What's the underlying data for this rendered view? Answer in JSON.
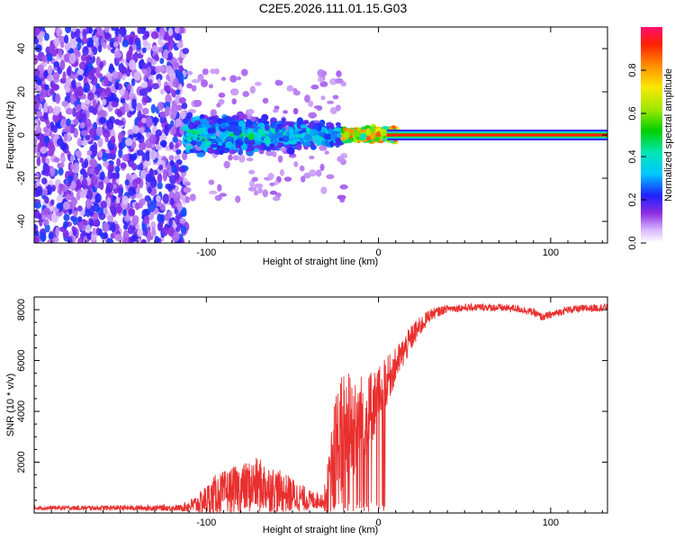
{
  "title": "C2E5.2026.111.01.15.G03",
  "chart_data": [
    {
      "type": "heatmap",
      "xlabel": "Height of straight line (km)",
      "ylabel": "Frequency (Hz)",
      "xlim": [
        -200,
        133
      ],
      "ylim": [
        -50,
        50
      ],
      "xticks": [
        -100,
        0,
        100
      ],
      "xtick_labels": [
        "-100",
        "0",
        "100"
      ],
      "yticks": [
        -40,
        -20,
        0,
        20,
        40
      ],
      "ytick_labels": [
        "-40",
        "-20",
        "0",
        "20",
        "40"
      ],
      "colorbar": {
        "label": "Normalized spectral amplitude",
        "range": [
          0,
          1
        ],
        "ticks": [
          0.0,
          0.2,
          0.4,
          0.6,
          0.8
        ],
        "tick_labels": [
          "0.0",
          "0.2",
          "0.4",
          "0.6",
          "0.8"
        ]
      },
      "regions": [
        {
          "x": [
            -200,
            -112
          ],
          "freq_spread": 50,
          "amplitude": [
            0.1,
            0.25
          ],
          "description": "noise"
        },
        {
          "x": [
            -112,
            -20
          ],
          "freq_spread": 12,
          "amplitude": [
            0.2,
            0.45
          ]
        },
        {
          "x": [
            -20,
            10
          ],
          "freq_spread": 4,
          "amplitude": [
            0.4,
            0.9
          ]
        },
        {
          "x": [
            10,
            133
          ],
          "freq_spread": 1,
          "amplitude": [
            0.95,
            1.0
          ]
        }
      ]
    },
    {
      "type": "line",
      "xlabel": "Height of straight line (km)",
      "ylabel": "SNR (10 * v/v)",
      "xlim": [
        -200,
        133
      ],
      "ylim": [
        0,
        8500
      ],
      "xticks": [
        -100,
        0,
        100
      ],
      "xtick_labels": [
        "-100",
        "0",
        "100"
      ],
      "yticks": [
        2000,
        4000,
        6000,
        8000
      ],
      "ytick_labels": [
        "2000",
        "4000",
        "6000",
        "8000"
      ],
      "color": "#e8302f",
      "envelope": {
        "x": [
          -200,
          -115,
          -105,
          -95,
          -85,
          -70,
          -60,
          -50,
          -40,
          -32,
          -28,
          -25,
          -20,
          -15,
          -10,
          -5,
          0,
          10,
          20,
          30,
          40,
          60,
          80,
          90,
          95,
          110,
          133
        ],
        "mean": [
          200,
          200,
          350,
          700,
          900,
          1100,
          900,
          700,
          500,
          500,
          1200,
          2500,
          3200,
          3500,
          3700,
          4000,
          4600,
          5800,
          7000,
          7800,
          8050,
          8100,
          8050,
          7900,
          7700,
          8000,
          8100
        ],
        "amp": [
          80,
          120,
          400,
          800,
          900,
          1100,
          900,
          700,
          400,
          300,
          1500,
          2500,
          2500,
          2300,
          1800,
          1500,
          1200,
          700,
          500,
          250,
          150,
          150,
          150,
          150,
          150,
          150,
          150
        ]
      }
    }
  ]
}
